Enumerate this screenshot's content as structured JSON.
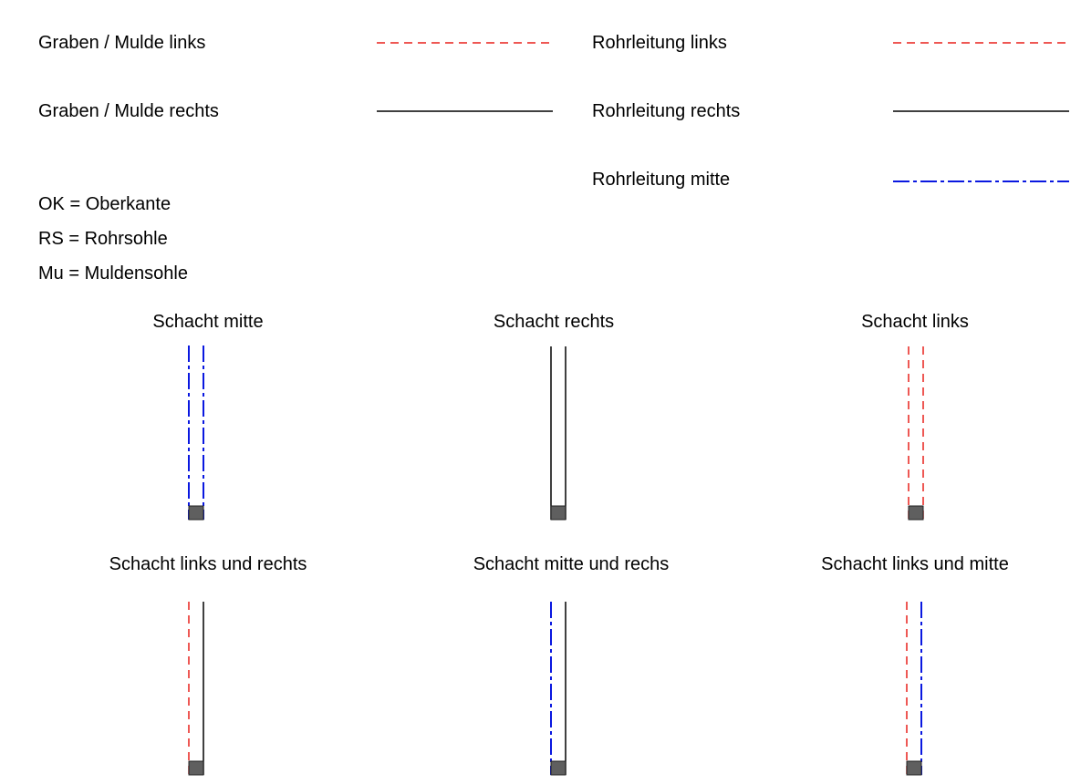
{
  "legend": {
    "graben_links": "Graben / Mulde links",
    "graben_rechts": "Graben / Mulde rechts",
    "rohr_links": "Rohrleitung links",
    "rohr_rechts": "Rohrleitung rechts",
    "rohr_mitte": "Rohrleitung mitte"
  },
  "abbreviations": {
    "ok": "OK = Oberkante",
    "rs": "RS = Rohrsohle",
    "mu": "Mu = Muldensohle"
  },
  "shafts": {
    "mitte": "Schacht mitte",
    "rechts": "Schacht rechts",
    "links": "Schacht links",
    "links_rechts": "Schacht links und rechts",
    "mitte_rechts": "Schacht mitte und rechs",
    "links_mitte": "Schacht links und mitte"
  },
  "colors": {
    "links": "#e8201c",
    "rechts": "#000000",
    "mitte": "#0a18e0",
    "shaft_fill": "#5f5f5f"
  }
}
